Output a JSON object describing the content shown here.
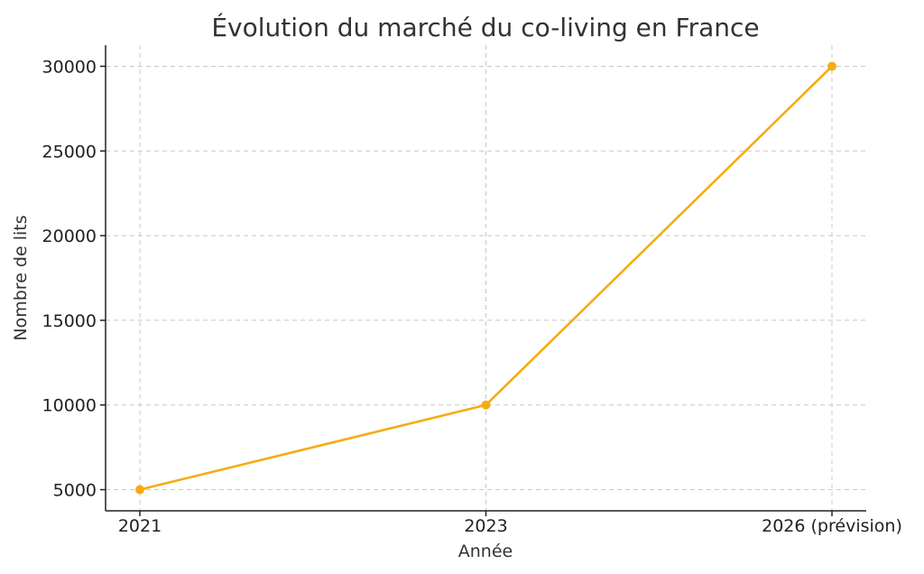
{
  "chart_data": {
    "type": "line",
    "title": "Évolution du marché du co-living en France",
    "xlabel": "Année",
    "ylabel": "Nombre de lits",
    "categories": [
      "2021",
      "2023",
      "2026 (prévision)"
    ],
    "series": [
      {
        "values": [
          5000,
          10000,
          30000
        ],
        "color": "#f5ac14",
        "marker": "circle"
      }
    ],
    "y_ticks": [
      5000,
      10000,
      15000,
      20000,
      25000,
      30000
    ],
    "y_tick_labels": [
      "5000",
      "10000",
      "15000",
      "20000",
      "25000",
      "30000"
    ],
    "ylim": [
      3750,
      31250
    ],
    "grid": true,
    "legend": "none"
  }
}
